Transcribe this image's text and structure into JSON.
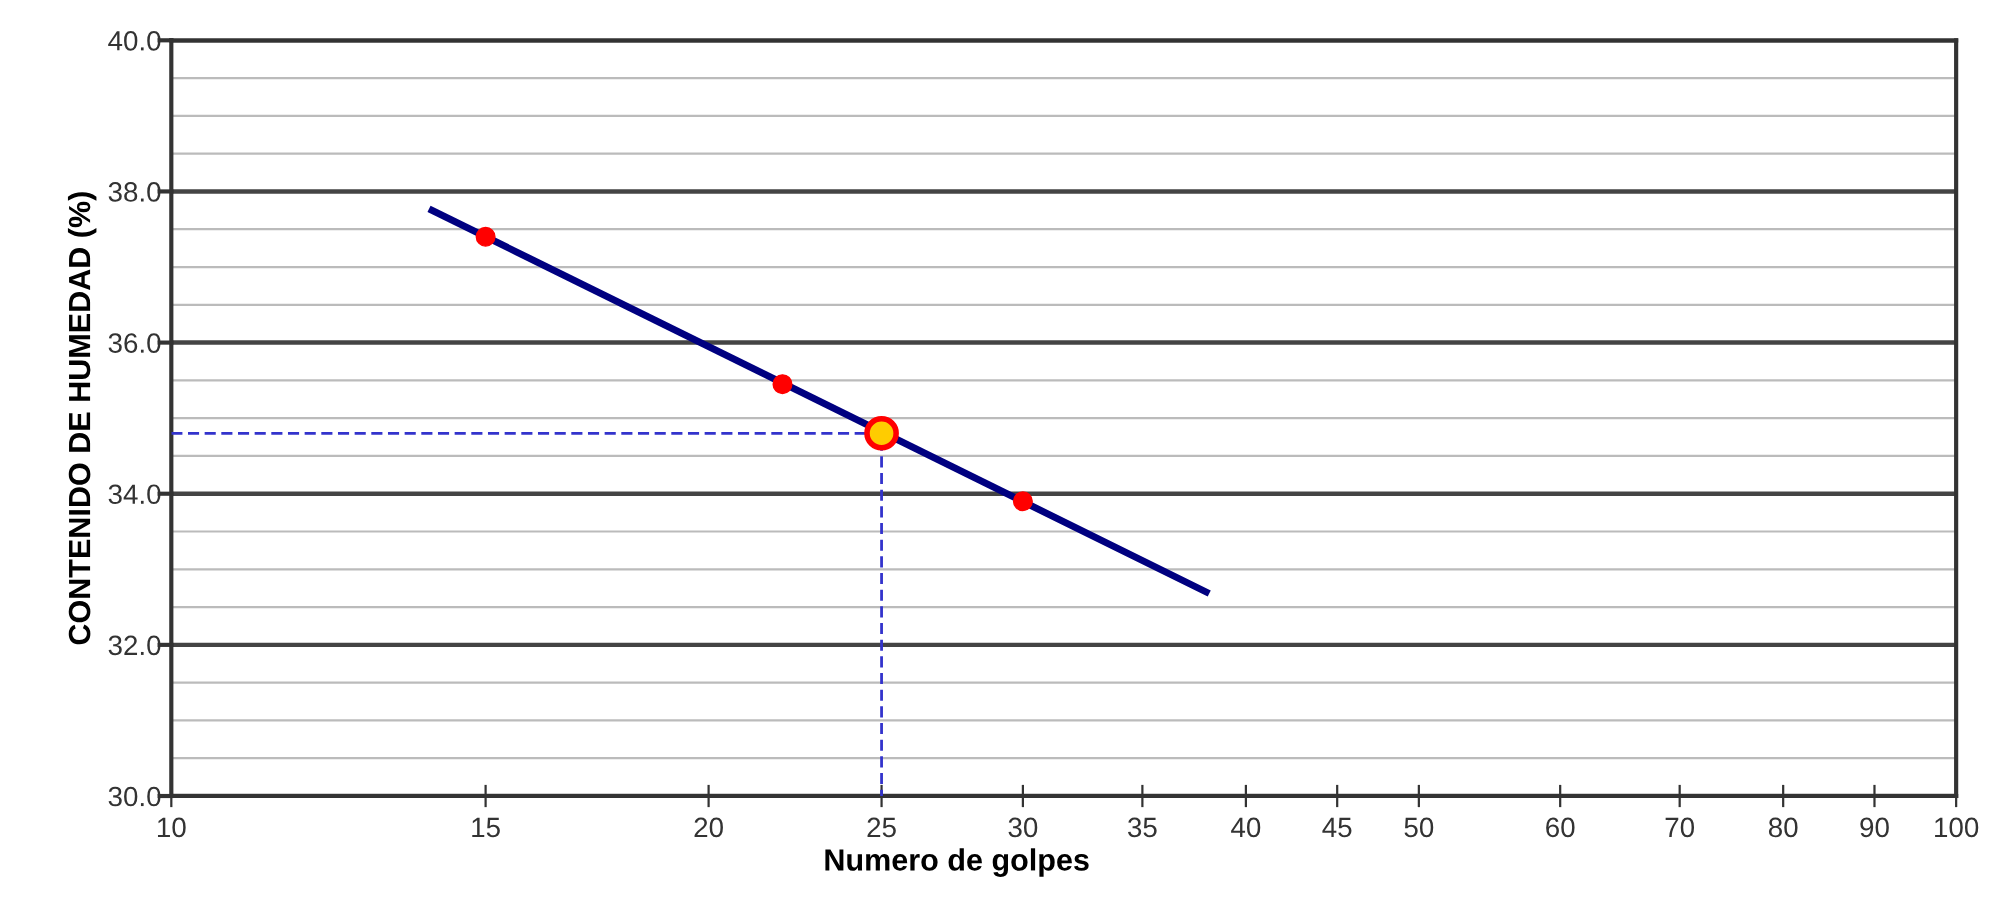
{
  "chart_data": {
    "type": "scatter",
    "xlabel": "Numero de golpes",
    "ylabel": "CONTENIDO DE HUMEDAD (%)",
    "log": "x",
    "xlim": [
      10,
      100
    ],
    "xticks": [
      10,
      15,
      20,
      25,
      30,
      35,
      40,
      45,
      50,
      60,
      70,
      80,
      90,
      100
    ],
    "ylim": [
      30,
      40
    ],
    "yticks": [
      {
        "value": 30,
        "label": "30.0"
      },
      {
        "value": 30.5,
        "label": null
      },
      {
        "value": 31,
        "label": null
      },
      {
        "value": 31.5,
        "label": null
      },
      {
        "value": 32,
        "label": "32.0"
      },
      {
        "value": 32.5,
        "label": null
      },
      {
        "value": 33,
        "label": null
      },
      {
        "value": 33.5,
        "label": null
      },
      {
        "value": 34,
        "label": "34.0"
      },
      {
        "value": 34.5,
        "label": null
      },
      {
        "value": 35,
        "label": null
      },
      {
        "value": 35.5,
        "label": null
      },
      {
        "value": 36,
        "label": "36.0"
      },
      {
        "value": 36.5,
        "label": null
      },
      {
        "value": 37,
        "label": null
      },
      {
        "value": 37.5,
        "label": null
      },
      {
        "value": 38,
        "label": "38.0"
      },
      {
        "value": 38.5,
        "label": null
      },
      {
        "value": 39,
        "label": null
      },
      {
        "value": 39.5,
        "label": null
      },
      {
        "value": 40,
        "label": "40.0"
      }
    ],
    "grid": "y",
    "legend": false,
    "series": [
      {
        "type": "line",
        "x": [
          10,
          25,
          25
        ],
        "values": [
          34.8,
          34.8,
          30
        ],
        "color": "#3333cc",
        "line_style": "dashed",
        "marker": "none"
      },
      {
        "type": "line",
        "x": [
          14,
          38
        ],
        "values": [
          37.75,
          32.7
        ],
        "color": "#000080",
        "line_style": "solid",
        "marker": "none"
      },
      {
        "x": [
          15,
          22,
          30
        ],
        "values": [
          37.4,
          35.45,
          33.9
        ],
        "color": "#ff0000",
        "marker": "circle"
      },
      {
        "x": [
          25
        ],
        "values": [
          34.8
        ],
        "color": "#ffcc00",
        "marker": "circle"
      }
    ]
  }
}
